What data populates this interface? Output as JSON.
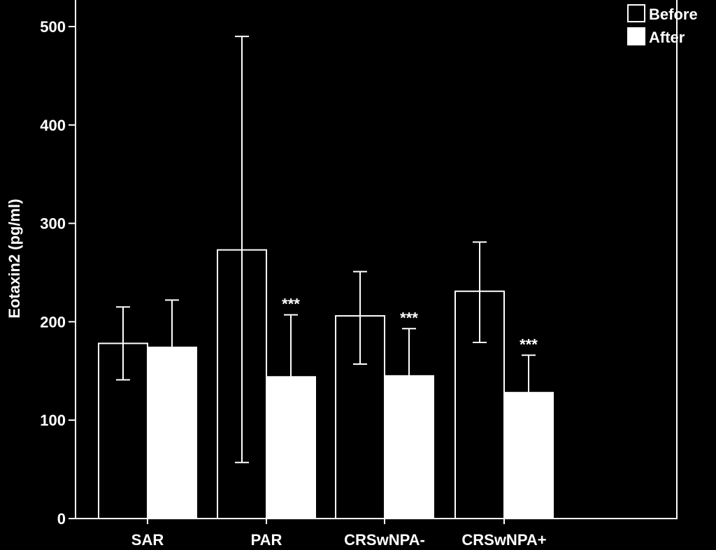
{
  "chart_data": {
    "type": "bar",
    "ylabel": "Eotaxin2 (pg/ml)",
    "ylim": [
      0,
      520
    ],
    "yticks": [
      "0",
      "100",
      "200",
      "300",
      "400",
      "500"
    ],
    "categories": [
      "SAR",
      "PAR",
      "CRSwNPA-",
      "CRSwNPA+"
    ],
    "series": [
      {
        "name": "Before",
        "values": [
          178,
          273,
          206,
          231
        ],
        "error_low": [
          141,
          57,
          157,
          179
        ],
        "error_high": [
          215,
          490,
          251,
          281
        ],
        "significance": [
          "",
          "",
          "",
          ""
        ]
      },
      {
        "name": "After",
        "values": [
          174,
          144,
          145,
          128
        ],
        "error_low": [
          174,
          144,
          145,
          128
        ],
        "error_high": [
          222,
          207,
          193,
          166
        ],
        "significance": [
          "",
          "***",
          "***",
          "***"
        ]
      }
    ],
    "legend": {
      "placement": "top-right",
      "entries": [
        "Before",
        "After"
      ]
    },
    "grid": false,
    "colors": {
      "background": "#000000",
      "foreground": "#ffffff",
      "before_fill": "#000000",
      "after_fill": "#ffffff"
    }
  }
}
